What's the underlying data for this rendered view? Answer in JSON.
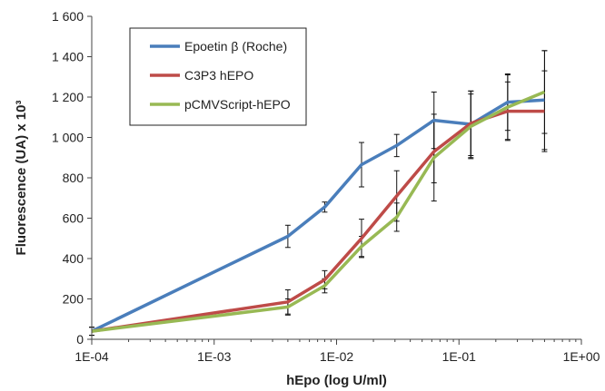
{
  "chart_data": {
    "type": "line",
    "xscale": "log",
    "xlabel": "hEpo (log U/ml)",
    "ylabel": "Fluorescence (UA) x 10³",
    "xlim": [
      0.0001,
      1
    ],
    "ylim": [
      0,
      1600
    ],
    "x_tick_values": [
      0.0001,
      0.001,
      0.01,
      0.1,
      1
    ],
    "x_tick_labels": [
      "1E-04",
      "1E-03",
      "1E-02",
      "1E-01",
      "1E+00"
    ],
    "y_tick_values": [
      0,
      200,
      400,
      600,
      800,
      1000,
      1200,
      1400,
      1600
    ],
    "y_tick_labels": [
      "0",
      "200",
      "400",
      "600",
      "800",
      "1 000",
      "1 200",
      "1 400",
      "1 600"
    ],
    "grid": false,
    "legend_position": "top-left",
    "x": [
      0.0001,
      0.004,
      0.008,
      0.016,
      0.031,
      0.0625,
      0.125,
      0.25,
      0.5
    ],
    "series": [
      {
        "name": "Epoetin β (Roche)",
        "color": "#4a7ebb",
        "values": [
          40,
          510,
          655,
          865,
          960,
          1085,
          1065,
          1175,
          1185
        ],
        "errors": [
          20,
          55,
          25,
          110,
          55,
          140,
          165,
          140,
          245
        ]
      },
      {
        "name": "C3P3 hEPO",
        "color": "#be4b48",
        "values": [
          40,
          185,
          295,
          500,
          710,
          930,
          1070,
          1130,
          1130
        ],
        "errors": [
          20,
          60,
          45,
          95,
          125,
          155,
          160,
          145,
          200
        ]
      },
      {
        "name": "pCMVScript-hEPO",
        "color": "#98b954",
        "values": [
          40,
          160,
          265,
          460,
          605,
          900,
          1055,
          1150,
          1225
        ],
        "errors": [
          20,
          40,
          35,
          50,
          70,
          215,
          160,
          160,
          205
        ]
      }
    ]
  }
}
